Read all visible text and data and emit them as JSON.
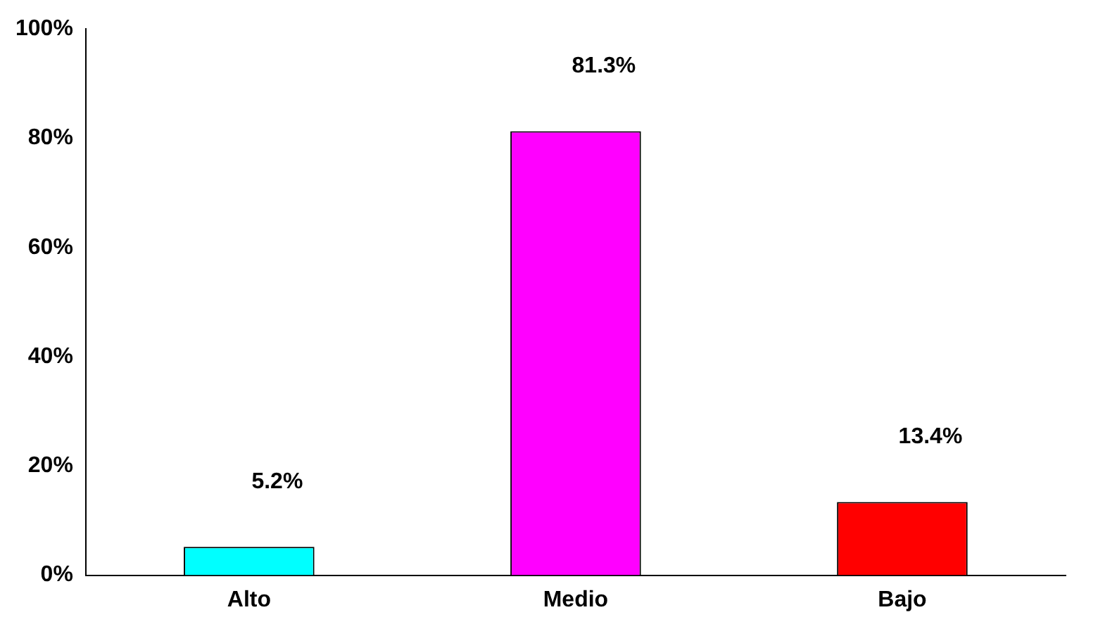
{
  "chart_data": {
    "type": "bar",
    "categories": [
      "Alto",
      "Medio",
      "Bajo"
    ],
    "values": [
      5.2,
      81.3,
      13.4
    ],
    "colors": [
      "#00ffff",
      "#ff00ff",
      "#ff0000"
    ],
    "value_labels": [
      "5.2%",
      "81.3%",
      "13.4%"
    ],
    "ylim": [
      0,
      100
    ],
    "yticks": [
      {
        "value": 0,
        "label": "0%"
      },
      {
        "value": 20,
        "label": "20%"
      },
      {
        "value": 40,
        "label": "40%"
      },
      {
        "value": 60,
        "label": "60%"
      },
      {
        "value": 80,
        "label": "80%"
      },
      {
        "value": 100,
        "label": "100%"
      }
    ],
    "grid": false,
    "legend": false
  }
}
